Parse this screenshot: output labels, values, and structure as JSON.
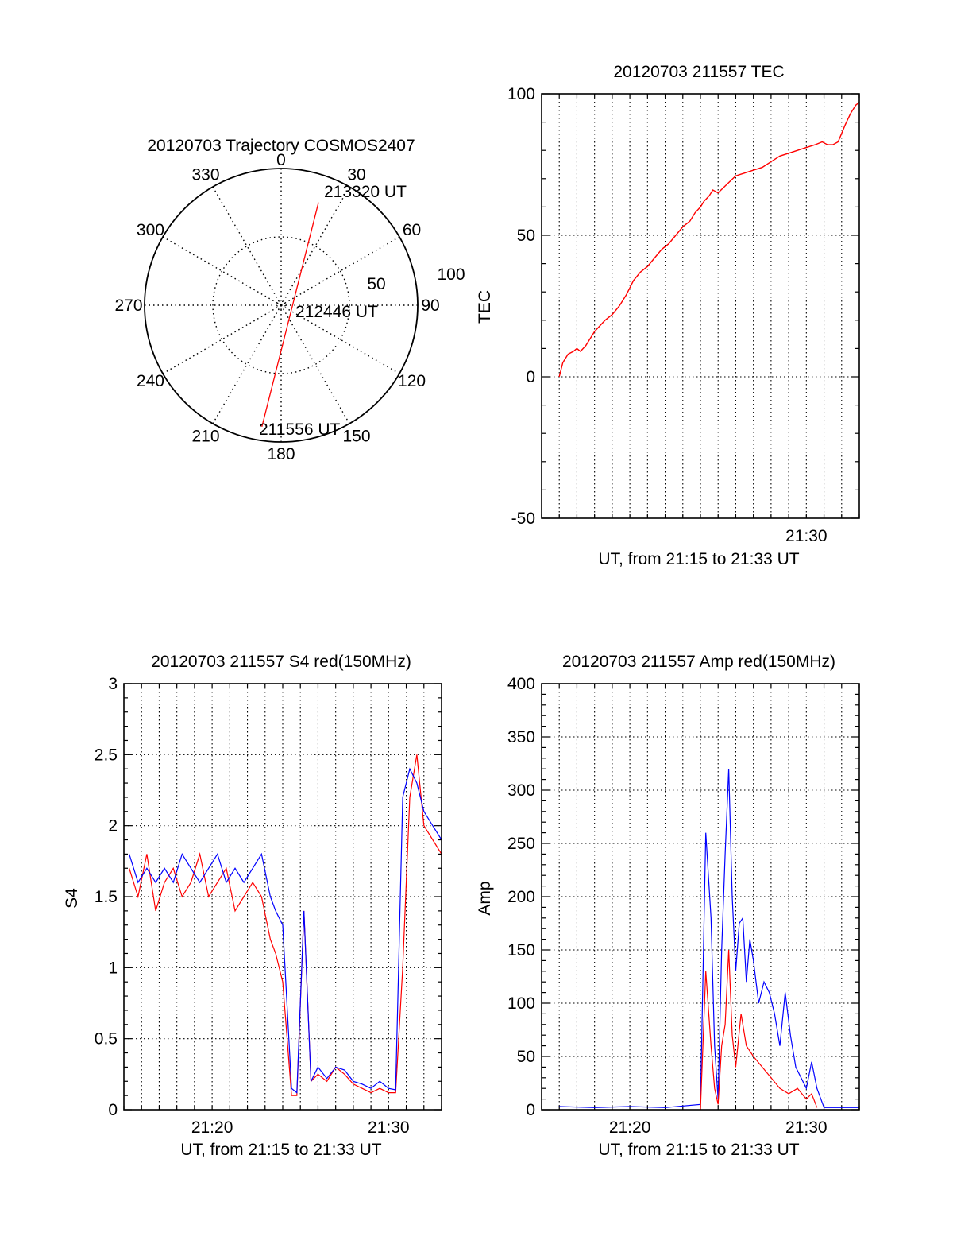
{
  "chart_data": [
    {
      "type": "polar",
      "title": "20120703 Trajectory COSMOS2407",
      "angle_labels": [
        "0",
        "30",
        "60",
        "90",
        "120",
        "150",
        "180",
        "210",
        "240",
        "270",
        "300",
        "330"
      ],
      "radius_labels": [
        "50",
        "100"
      ],
      "rlim": [
        0,
        100
      ],
      "grid": true,
      "track": {
        "color": "#ff0000",
        "start": {
          "azimuth": 189,
          "r": 90
        },
        "end": {
          "azimuth": 20,
          "r": 80
        }
      },
      "annotations": [
        {
          "text": "213320 UT",
          "azimuth": 20,
          "r": 80
        },
        {
          "text": "212446 UT",
          "azimuth": 0,
          "r": 0
        },
        {
          "text": "211556 UT",
          "azimuth": 189,
          "r": 90
        }
      ]
    },
    {
      "type": "line",
      "title": "20120703 211557 TEC",
      "ylabel": "TEC",
      "xlabel": "UT, from 21:15 to 21:33 UT",
      "x_ticks": [
        {
          "value": 30,
          "label": "21:30"
        }
      ],
      "y_ticks": [
        "100",
        "50",
        "0",
        "-50"
      ],
      "xlim": [
        15,
        33
      ],
      "ylim": [
        -50,
        100
      ],
      "grid": true,
      "series": [
        {
          "color": "#ff0000",
          "x": [
            16.0,
            16.2,
            16.5,
            16.8,
            17.0,
            17.2,
            17.5,
            17.8,
            18.0,
            18.3,
            18.6,
            19.0,
            19.4,
            19.8,
            20.2,
            20.6,
            21.0,
            21.4,
            21.8,
            22.2,
            22.6,
            23.0,
            23.4,
            23.7,
            24.0,
            24.2,
            24.5,
            24.7,
            25.0,
            25.5,
            26.0,
            26.5,
            27.0,
            27.5,
            28.0,
            28.5,
            29.0,
            29.5,
            30.0,
            30.5,
            30.9,
            31.2,
            31.5,
            31.8,
            32.0,
            32.2,
            32.5,
            32.8,
            33.0
          ],
          "y": [
            0,
            5,
            8,
            9,
            10,
            9,
            11,
            14,
            16,
            18,
            20,
            22,
            25,
            29,
            34,
            37,
            39,
            42,
            45,
            47,
            50,
            53,
            55,
            58,
            60,
            62,
            64,
            66,
            65,
            68,
            71,
            72,
            73,
            74,
            76,
            78,
            79,
            80,
            81,
            82,
            83,
            82,
            82,
            83,
            86,
            89,
            93,
            96,
            97
          ]
        }
      ]
    },
    {
      "type": "line",
      "title": "20120703 211557 S4 red(150MHz)",
      "ylabel": "S4",
      "xlabel": "UT, from 21:15 to 21:33 UT",
      "x_ticks": [
        {
          "value": 20,
          "label": "21:20"
        },
        {
          "value": 30,
          "label": "21:30"
        }
      ],
      "y_ticks": [
        "3",
        "2.5",
        "2",
        "1.5",
        "1",
        "0.5",
        "0"
      ],
      "xlim": [
        15,
        33
      ],
      "ylim": [
        0,
        3
      ],
      "grid": true,
      "series": [
        {
          "color": "#ff0000",
          "x": [
            15.3,
            15.8,
            16.3,
            16.8,
            17.3,
            17.8,
            18.3,
            18.8,
            19.3,
            19.8,
            20.3,
            20.8,
            21.3,
            21.8,
            22.3,
            22.8,
            23.3,
            23.6,
            24.0,
            24.5,
            24.8,
            25.2,
            25.6,
            26.0,
            26.5,
            27.0,
            27.5,
            28.0,
            28.5,
            29.0,
            29.5,
            30.0,
            30.4,
            30.8,
            31.2,
            31.6,
            32.0,
            32.5,
            33.0
          ],
          "y": [
            1.7,
            1.5,
            1.8,
            1.4,
            1.6,
            1.7,
            1.5,
            1.6,
            1.8,
            1.5,
            1.6,
            1.7,
            1.4,
            1.5,
            1.6,
            1.5,
            1.2,
            1.1,
            0.9,
            0.1,
            0.1,
            1.4,
            0.2,
            0.25,
            0.2,
            0.3,
            0.25,
            0.18,
            0.15,
            0.12,
            0.15,
            0.12,
            0.12,
            1.0,
            2.2,
            2.5,
            2.0,
            1.9,
            1.8
          ]
        },
        {
          "color": "#0000ff",
          "x": [
            15.3,
            15.8,
            16.3,
            16.8,
            17.3,
            17.8,
            18.3,
            18.8,
            19.3,
            19.8,
            20.3,
            20.8,
            21.3,
            21.8,
            22.3,
            22.8,
            23.3,
            23.6,
            24.0,
            24.5,
            24.8,
            25.2,
            25.6,
            26.0,
            26.5,
            27.0,
            27.5,
            28.0,
            28.5,
            29.0,
            29.5,
            30.0,
            30.4,
            30.8,
            31.2,
            31.6,
            32.0,
            32.5,
            33.0
          ],
          "y": [
            1.8,
            1.6,
            1.7,
            1.6,
            1.7,
            1.6,
            1.8,
            1.7,
            1.6,
            1.7,
            1.8,
            1.6,
            1.7,
            1.6,
            1.7,
            1.8,
            1.5,
            1.4,
            1.3,
            0.15,
            0.12,
            1.4,
            0.2,
            0.3,
            0.22,
            0.3,
            0.28,
            0.2,
            0.18,
            0.15,
            0.2,
            0.15,
            0.14,
            2.2,
            2.4,
            2.3,
            2.1,
            2.0,
            1.9
          ]
        }
      ]
    },
    {
      "type": "line",
      "title": "20120703 211557 Amp red(150MHz)",
      "ylabel": "Amp",
      "xlabel": "UT, from 21:15 to 21:33 UT",
      "x_ticks": [
        {
          "value": 20,
          "label": "21:20"
        },
        {
          "value": 30,
          "label": "21:30"
        }
      ],
      "y_ticks": [
        "400",
        "350",
        "300",
        "250",
        "200",
        "150",
        "100",
        "50",
        "0"
      ],
      "xlim": [
        15,
        33
      ],
      "ylim": [
        0,
        400
      ],
      "grid": true,
      "series": [
        {
          "color": "#0000ff",
          "x": [
            16.0,
            18.0,
            20.0,
            22.0,
            24.0,
            24.3,
            24.6,
            24.8,
            25.0,
            25.2,
            25.4,
            25.6,
            25.8,
            26.0,
            26.2,
            26.4,
            26.6,
            26.8,
            27.0,
            27.3,
            27.6,
            27.9,
            28.2,
            28.5,
            28.8,
            29.1,
            29.4,
            29.7,
            30.0,
            30.3,
            30.6,
            31.0,
            32.0,
            33.0
          ],
          "y": [
            3,
            2,
            3,
            2,
            5,
            260,
            180,
            60,
            10,
            150,
            240,
            320,
            200,
            130,
            175,
            180,
            120,
            160,
            140,
            100,
            120,
            110,
            90,
            60,
            110,
            70,
            40,
            30,
            20,
            45,
            20,
            2,
            2,
            2
          ]
        },
        {
          "color": "#ff0000",
          "x": [
            24.0,
            24.3,
            24.6,
            24.8,
            25.0,
            25.2,
            25.4,
            25.6,
            25.8,
            26.0,
            26.3,
            26.6,
            27.0,
            27.5,
            28.0,
            28.5,
            29.0,
            29.5,
            30.0,
            30.3,
            30.6
          ],
          "y": [
            0,
            130,
            60,
            20,
            5,
            60,
            80,
            150,
            70,
            40,
            90,
            60,
            50,
            40,
            30,
            20,
            15,
            20,
            10,
            15,
            2
          ]
        }
      ]
    }
  ]
}
